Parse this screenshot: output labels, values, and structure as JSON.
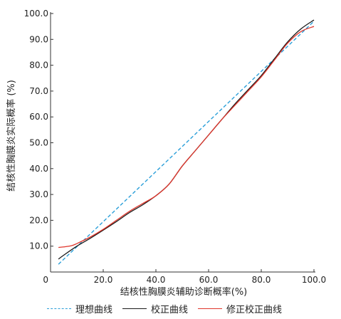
{
  "chart_data": {
    "type": "line",
    "xlabel": "结核性胸膜炎辅助诊断概率(%)",
    "ylabel": "结核性胸膜炎实际概率 (%)",
    "xlim": [
      0,
      100
    ],
    "ylim": [
      0,
      100
    ],
    "x_ticks": [
      "0",
      "20.0",
      "40.0",
      "60.0",
      "80.0",
      "100.0"
    ],
    "y_ticks": [
      "10.0",
      "20.0",
      "30.0",
      "40.0",
      "50.0",
      "60.0",
      "70.0",
      "80.0",
      "90.0",
      "100.0"
    ],
    "legend_position": "bottom",
    "series": [
      {
        "name": "理想曲线",
        "color": "#2b9fd9",
        "dash": true,
        "x": [
          3,
          100
        ],
        "y": [
          3,
          97
        ]
      },
      {
        "name": "校正曲线",
        "color": "#1a1a1a",
        "dash": false,
        "x": [
          3,
          5,
          10,
          15,
          20,
          25,
          30,
          35,
          40,
          45,
          50,
          55,
          60,
          65,
          70,
          75,
          80,
          85,
          90,
          95,
          100
        ],
        "y": [
          5,
          6.5,
          10,
          13,
          16.2,
          19.5,
          23,
          26,
          29.5,
          34,
          41,
          47,
          53,
          59,
          65,
          70.5,
          76,
          82.5,
          89,
          94,
          97.5
        ]
      },
      {
        "name": "修正校正曲线",
        "color": "#e0352b",
        "dash": false,
        "x": [
          3,
          5,
          8,
          10,
          15,
          20,
          25,
          30,
          35,
          40,
          45,
          50,
          55,
          60,
          65,
          70,
          75,
          80,
          85,
          90,
          95,
          100
        ],
        "y": [
          9.5,
          9.7,
          10.2,
          11,
          13.5,
          16.5,
          20,
          23.5,
          26.5,
          29.5,
          34,
          41,
          47,
          53,
          59,
          64.5,
          70,
          75.5,
          82,
          88.5,
          93,
          95
        ]
      }
    ]
  }
}
